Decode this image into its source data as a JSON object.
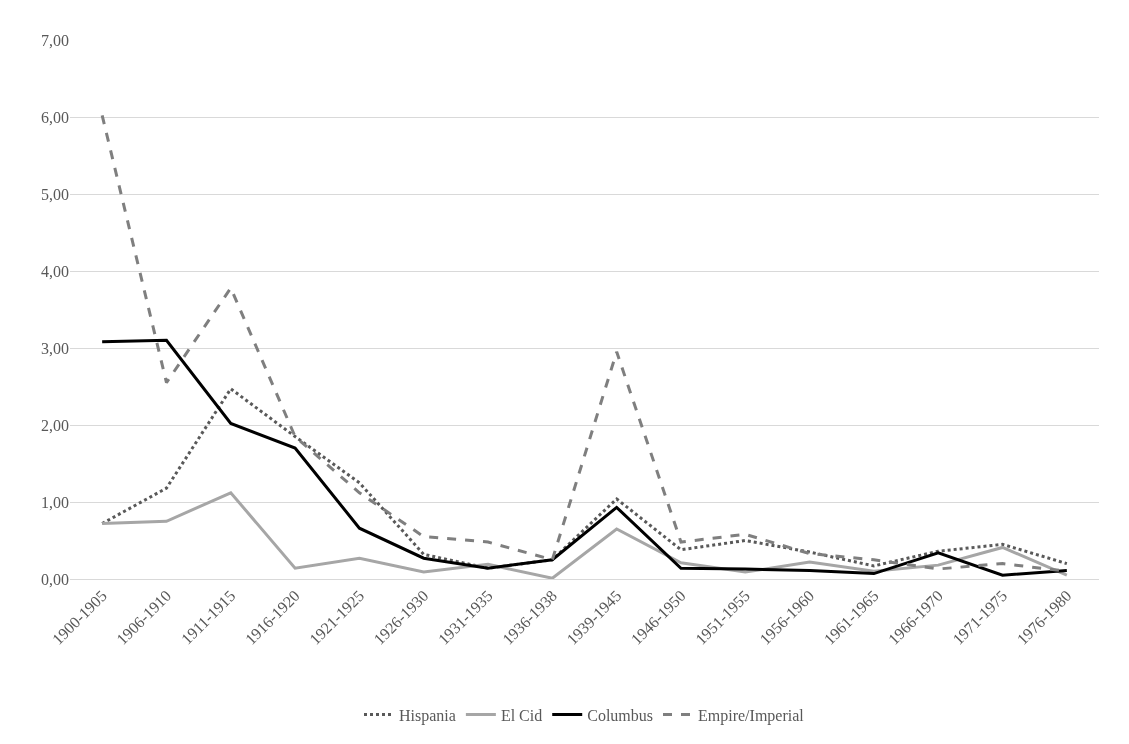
{
  "chart_data": {
    "type": "line",
    "categories": [
      "1900-1905",
      "1906-1910",
      "1911-1915",
      "1916-1920",
      "1921-1925",
      "1926-1930",
      "1931-1935",
      "1936-1938",
      "1939-1945",
      "1946-1950",
      "1951-1955",
      "1956-1960",
      "1961-1965",
      "1966-1970",
      "1971-1975",
      "1976-1980"
    ],
    "series": [
      {
        "name": "Hispania",
        "color": "#595959",
        "line_style": "dotted",
        "values": [
          0.72,
          1.18,
          2.47,
          1.85,
          1.25,
          0.32,
          0.14,
          0.25,
          1.04,
          0.38,
          0.5,
          0.35,
          0.17,
          0.36,
          0.45,
          0.2
        ]
      },
      {
        "name": "El Cid",
        "color": "#a6a6a6",
        "line_style": "solid",
        "values": [
          0.72,
          0.75,
          1.12,
          0.14,
          0.27,
          0.09,
          0.19,
          0.01,
          0.65,
          0.21,
          0.09,
          0.22,
          0.1,
          0.18,
          0.41,
          0.05
        ]
      },
      {
        "name": "Columbus",
        "color": "#000000",
        "line_style": "solid",
        "values": [
          3.08,
          3.1,
          2.02,
          1.7,
          0.66,
          0.27,
          0.14,
          0.25,
          0.93,
          0.14,
          0.13,
          0.11,
          0.07,
          0.34,
          0.05,
          0.11
        ]
      },
      {
        "name": "Empire/Imperial",
        "color": "#7f7f7f",
        "line_style": "dashed",
        "values": [
          6.02,
          2.55,
          3.78,
          1.85,
          1.12,
          0.55,
          0.48,
          0.25,
          2.95,
          0.48,
          0.58,
          0.33,
          0.25,
          0.13,
          0.2,
          0.1
        ]
      }
    ],
    "ylim": [
      0,
      7
    ],
    "yticks": [
      {
        "value": 0,
        "label": "0,00"
      },
      {
        "value": 1,
        "label": "1,00"
      },
      {
        "value": 2,
        "label": "2,00"
      },
      {
        "value": 3,
        "label": "3,00"
      },
      {
        "value": 4,
        "label": "4,00"
      },
      {
        "value": 5,
        "label": "5,00"
      },
      {
        "value": 6,
        "label": "6,00"
      },
      {
        "value": 7,
        "label": "7,00"
      }
    ],
    "grid": "y",
    "legend": "bottom",
    "marker": "none"
  }
}
